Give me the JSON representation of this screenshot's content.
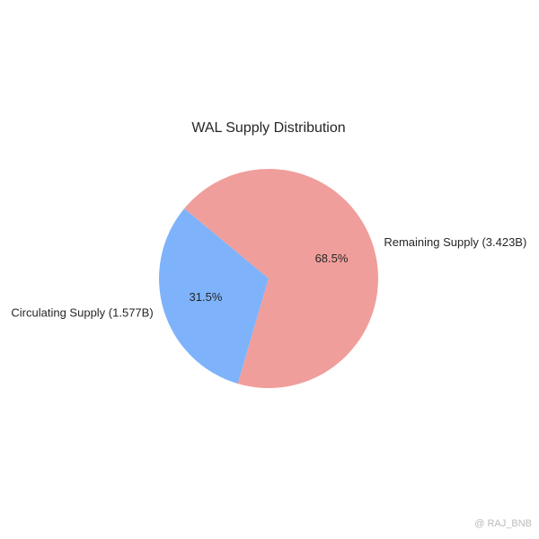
{
  "chart_data": {
    "type": "pie",
    "title": "WAL Supply Distribution",
    "categories": [
      "Circulating Supply (1.577B)",
      "Remaining Supply (3.423B)"
    ],
    "values": [
      31.5,
      68.5
    ],
    "value_labels": [
      "31.5%",
      "68.5%"
    ],
    "colors": [
      "#7eb3fb",
      "#f09e9b"
    ]
  },
  "watermark": "@ RAJ_BNB"
}
